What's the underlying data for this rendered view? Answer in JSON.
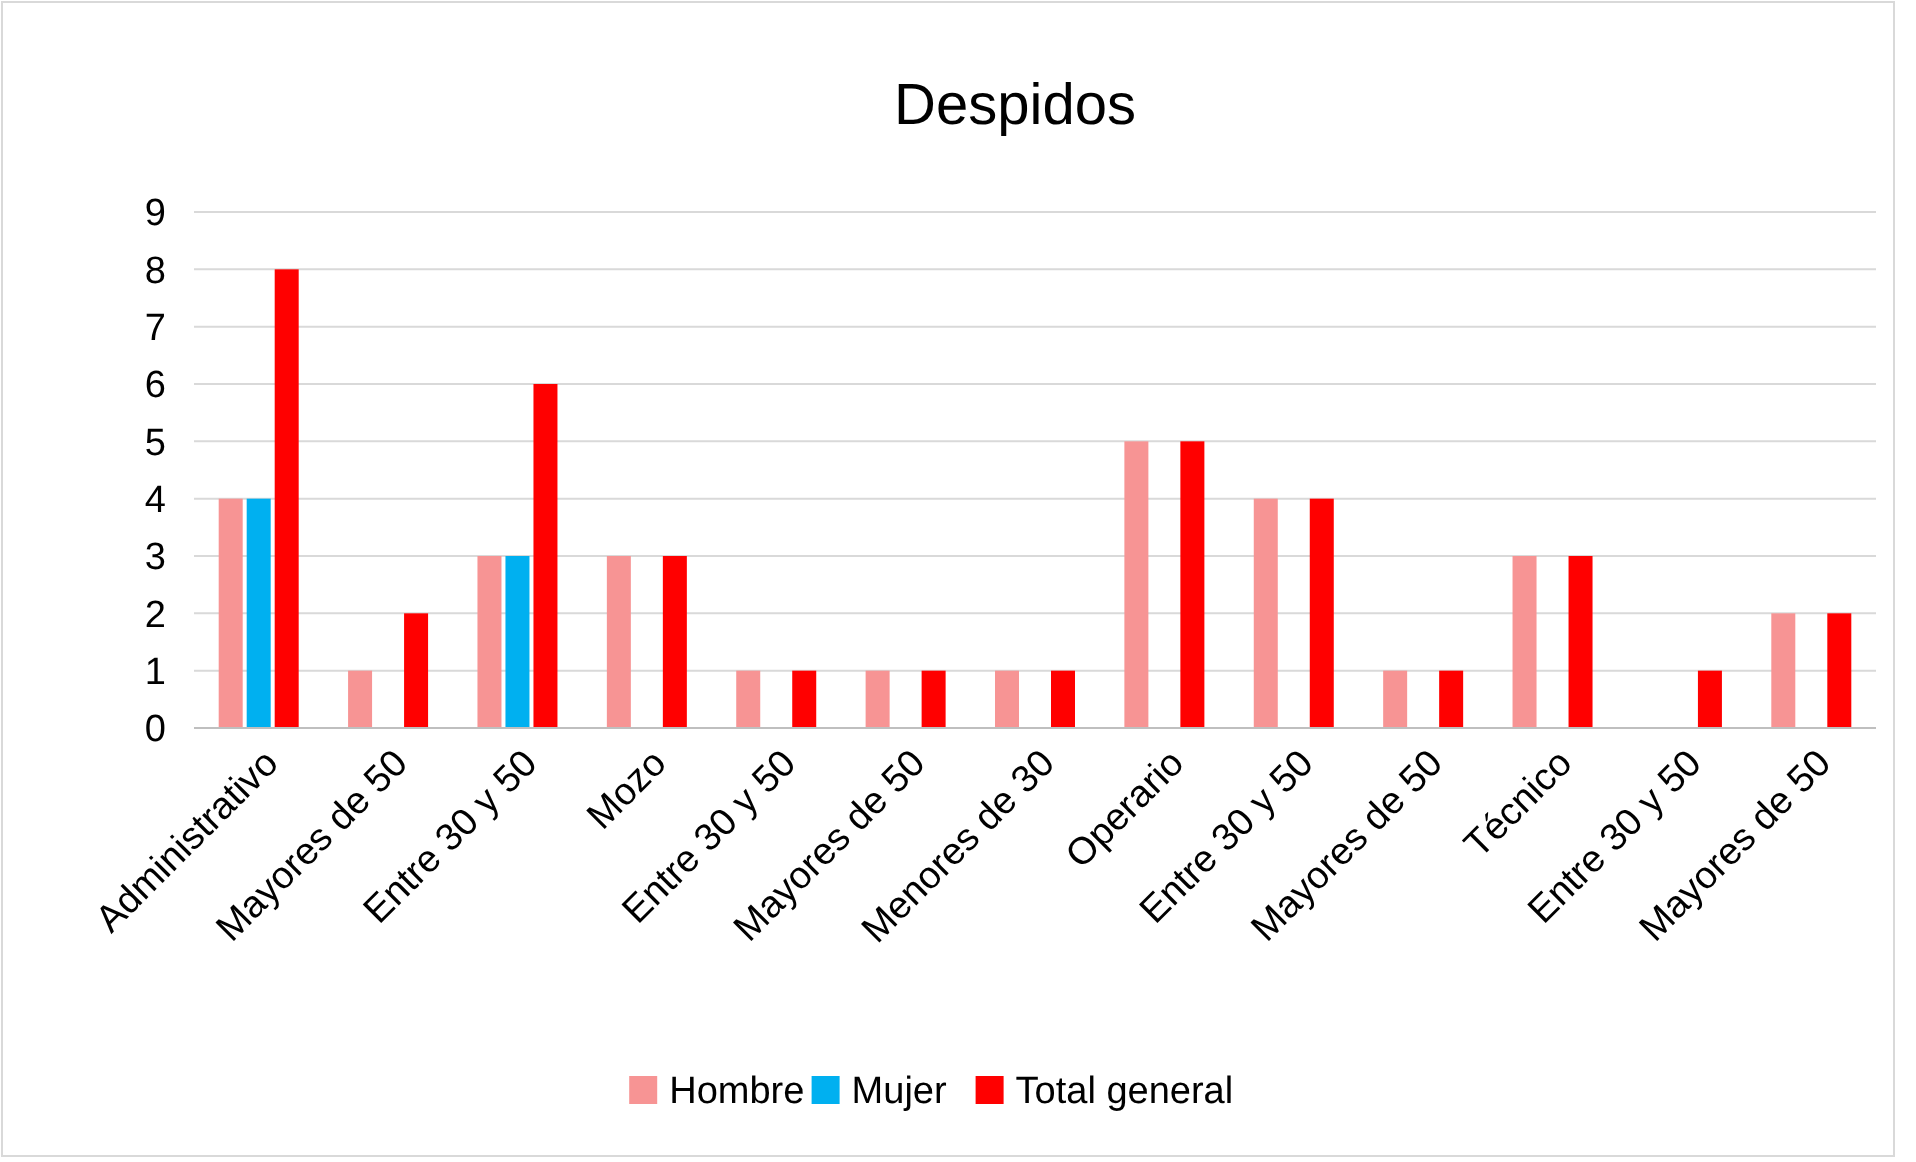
{
  "chart_data": {
    "type": "bar",
    "title": "Despidos",
    "categories": [
      "Administrativo",
      "Mayores de 50",
      "Entre 30 y 50",
      "Mozo",
      "Entre 30 y 50",
      "Mayores de 50",
      "Menores de 30",
      "Operario",
      "Entre 30 y 50",
      "Mayores de 50",
      "Técnico",
      "Entre 30 y 50",
      "Mayores de 50"
    ],
    "series": [
      {
        "name": "Hombre",
        "color": "#f79494",
        "values": [
          4,
          1,
          3,
          3,
          1,
          1,
          1,
          5,
          4,
          1,
          3,
          null,
          2
        ]
      },
      {
        "name": "Mujer",
        "color": "#00b0f0",
        "values": [
          4,
          null,
          3,
          null,
          null,
          null,
          null,
          null,
          null,
          null,
          null,
          null,
          null
        ]
      },
      {
        "name": "Total general",
        "color": "#ff0000",
        "values": [
          8,
          2,
          6,
          3,
          1,
          1,
          1,
          5,
          4,
          1,
          3,
          1,
          2
        ]
      }
    ],
    "ylim": [
      0,
      9
    ],
    "yticks": [
      0,
      1,
      2,
      3,
      4,
      5,
      6,
      7,
      8,
      9
    ],
    "grid": "y",
    "legend": "bottom"
  }
}
